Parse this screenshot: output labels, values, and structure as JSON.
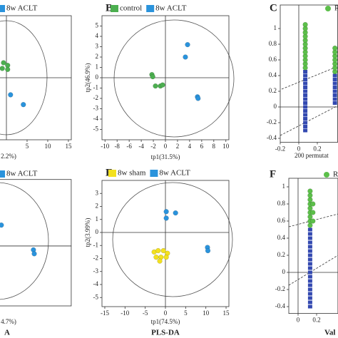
{
  "chart_data": [
    {
      "type": "scatter",
      "x_label": "2.2%)",
      "caption": null,
      "zero_lines": true,
      "xlim": [
        -15.7,
        15.7
      ],
      "ylim": [
        -6,
        6
      ],
      "xticks": [
        5,
        10,
        15
      ],
      "series": [
        {
          "name": "8w ACLT",
          "color": "#2a93dc",
          "marker": "circle",
          "x": [
            1.0,
            4.1
          ],
          "values": [
            -1.65,
            -2.6
          ]
        },
        {
          "color": "#4caf50",
          "marker": "circle",
          "x": [
            -0.7,
            0.3,
            -1.0,
            0.3
          ],
          "values": [
            1.45,
            1.2,
            0.9,
            0.8
          ]
        }
      ]
    },
    {
      "type": "scatter",
      "panel": "B",
      "x_label": "tp1(31.5%)",
      "y_label": "tp2(46.9%)",
      "zero_lines": true,
      "xlim": [
        -10.5,
        10.5
      ],
      "ylim": [
        -6,
        6
      ],
      "xticks": [
        -10,
        -8,
        -6,
        -4,
        -2,
        0,
        2,
        4,
        6,
        8,
        10
      ],
      "yticks": [
        -5,
        -4,
        -3,
        -2,
        -1,
        0,
        1,
        2,
        3,
        4,
        5
      ],
      "series": [
        {
          "name": "control",
          "color": "#4caf50",
          "marker": "circle",
          "x": [
            -2.24,
            -2.1,
            -1.65,
            -0.83,
            -0.47
          ],
          "values": [
            0.3,
            0.1,
            -0.8,
            -0.8,
            -0.7
          ]
        },
        {
          "name": "8w ACLT",
          "color": "#2a93dc",
          "marker": "circle",
          "x": [
            3.66,
            3.3,
            5.3,
            5.4
          ],
          "values": [
            3.2,
            2.0,
            -1.85,
            -2.0
          ]
        }
      ]
    },
    {
      "type": "scatter",
      "panel": "C",
      "x_label": "200 permutat",
      "zero_lines": true,
      "xlim": [
        -0.2,
        0.42
      ],
      "ylim": [
        -0.45,
        1.3
      ],
      "xticks": [
        -0.2,
        0,
        0.2
      ],
      "yticks": [
        -0.4,
        -0.2,
        0,
        0.2,
        0.4,
        0.6,
        0.8,
        1
      ],
      "series": [
        {
          "color": "#3349b0",
          "marker": "square",
          "x": [
            0.07,
            0.07,
            0.07,
            0.07,
            0.07,
            0.07,
            0.07,
            0.07,
            0.07,
            0.07,
            0.07,
            0.07,
            0.07,
            0.07,
            0.07,
            0.07,
            0.39,
            0.39,
            0.39,
            0.39,
            0.39,
            0.39,
            0.39,
            0.39
          ],
          "values": [
            -0.3,
            -0.25,
            -0.2,
            -0.15,
            -0.1,
            -0.05,
            0,
            0.05,
            0.1,
            0.15,
            0.2,
            0.25,
            0.3,
            0.35,
            0.4,
            0.45,
            0.05,
            0.1,
            0.15,
            0.2,
            0.25,
            0.3,
            0.35,
            0.4
          ]
        },
        {
          "name": "R",
          "color": "#5cbf4a",
          "marker": "circle",
          "x": [
            0.07,
            0.07,
            0.07,
            0.07,
            0.07,
            0.07,
            0.07,
            0.07,
            0.07,
            0.07,
            0.07,
            0.07,
            0.39,
            0.39,
            0.39,
            0.39,
            0.39,
            0.39,
            0.39
          ],
          "values": [
            0.5,
            0.55,
            0.6,
            0.65,
            0.7,
            0.75,
            0.8,
            0.85,
            0.9,
            0.95,
            1,
            1.05,
            0.45,
            0.5,
            0.55,
            0.6,
            0.65,
            0.7,
            0.75
          ]
        }
      ]
    },
    {
      "type": "scatter",
      "x_label": "4.7%)",
      "caption": "A",
      "zero_lines": true,
      "xlim": [
        -12,
        18.4
      ],
      "ylim": [
        -4.6,
        5.1
      ],
      "series": [
        {
          "name": "8w ACLT",
          "color": "#2a93dc",
          "marker": "circle",
          "x": [
            1.2,
            9.1,
            9.3
          ],
          "values": [
            1.6,
            -0.3,
            -0.6
          ]
        }
      ]
    },
    {
      "type": "scatter",
      "panel": "E",
      "x_label": "tp1(74.5%)",
      "y_label": "tp2(3.99%)",
      "caption": "PLS-DA",
      "zero_lines": true,
      "xlim": [
        -15.7,
        15.7
      ],
      "ylim": [
        -5.7,
        4
      ],
      "xticks": [
        -15,
        -10,
        -5,
        0,
        5,
        10,
        15
      ],
      "yticks": [
        -5,
        -4,
        -3,
        -2,
        -1,
        0,
        1,
        2,
        3
      ],
      "series": [
        {
          "name": "8w sham",
          "color": "#f3e11e",
          "marker": "circle",
          "x": [
            -2.8,
            -1.8,
            -0.5,
            0.5,
            -2.3,
            -1.1,
            0.2,
            -1.4
          ],
          "values": [
            -1.5,
            -1.4,
            -1.4,
            -1.6,
            -1.9,
            -1.9,
            -1.9,
            -2.2
          ]
        },
        {
          "name": "8w ACLT",
          "color": "#2a93dc",
          "marker": "circle",
          "x": [
            0.2,
            0.2,
            2.5,
            10.4,
            10.5
          ],
          "values": [
            1.6,
            1.1,
            1.5,
            -1.15,
            -1.4
          ]
        }
      ]
    },
    {
      "type": "scatter",
      "panel": "F",
      "caption": "Val",
      "zero_lines": true,
      "xlim": [
        -0.1,
        0.43
      ],
      "ylim": [
        -0.48,
        1.1
      ],
      "xticks": [
        0,
        0.2
      ],
      "yticks": [
        -0.4,
        -0.2,
        0,
        0.2,
        0.4,
        0.6,
        0.8,
        1
      ],
      "series": [
        {
          "color": "#3349b0",
          "marker": "square",
          "x": [
            0.13,
            0.13,
            0.13,
            0.13,
            0.13,
            0.13,
            0.13,
            0.13,
            0.13,
            0.13,
            0.13,
            0.13,
            0.13,
            0.13,
            0.13,
            0.13,
            0.13,
            0.13,
            0.13
          ],
          "values": [
            -0.4,
            -0.35,
            -0.3,
            -0.25,
            -0.2,
            -0.15,
            -0.1,
            -0.05,
            0,
            0.05,
            0.1,
            0.15,
            0.2,
            0.25,
            0.3,
            0.35,
            0.4,
            0.45,
            0.5
          ]
        },
        {
          "name": "R",
          "color": "#5cbf4a",
          "marker": "circle",
          "x": [
            0.13,
            0.13,
            0.13,
            0.13,
            0.13,
            0.13,
            0.13,
            0.13,
            0.13,
            0.16,
            0.16,
            0.16
          ],
          "values": [
            0.55,
            0.6,
            0.65,
            0.7,
            0.75,
            0.8,
            0.85,
            0.9,
            0.95,
            0.6,
            0.7,
            0.8
          ]
        }
      ]
    }
  ]
}
